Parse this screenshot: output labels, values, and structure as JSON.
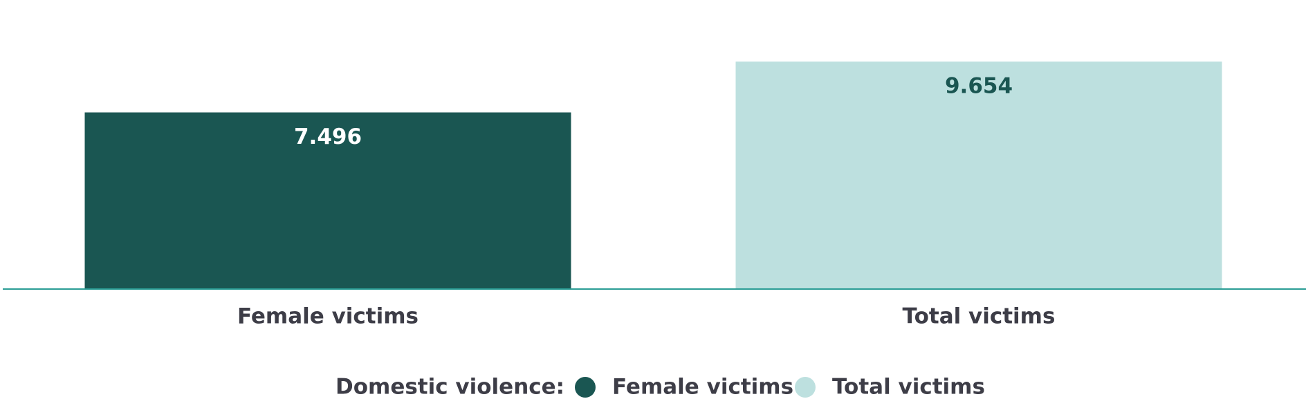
{
  "chart_data": {
    "type": "bar",
    "categories": [
      "Female victims",
      "Total victims"
    ],
    "legend_title": "Domestic violence:",
    "series": [
      {
        "name": "Female victims",
        "color": "#1a5652",
        "values": [
          7496,
          null
        ],
        "value_labels": [
          "7.496",
          null
        ]
      },
      {
        "name": "Total victims",
        "color": "#bde0df",
        "values": [
          null,
          9654
        ],
        "value_labels": [
          null,
          "9.654"
        ]
      }
    ],
    "axis_color": "#2a9d95"
  }
}
